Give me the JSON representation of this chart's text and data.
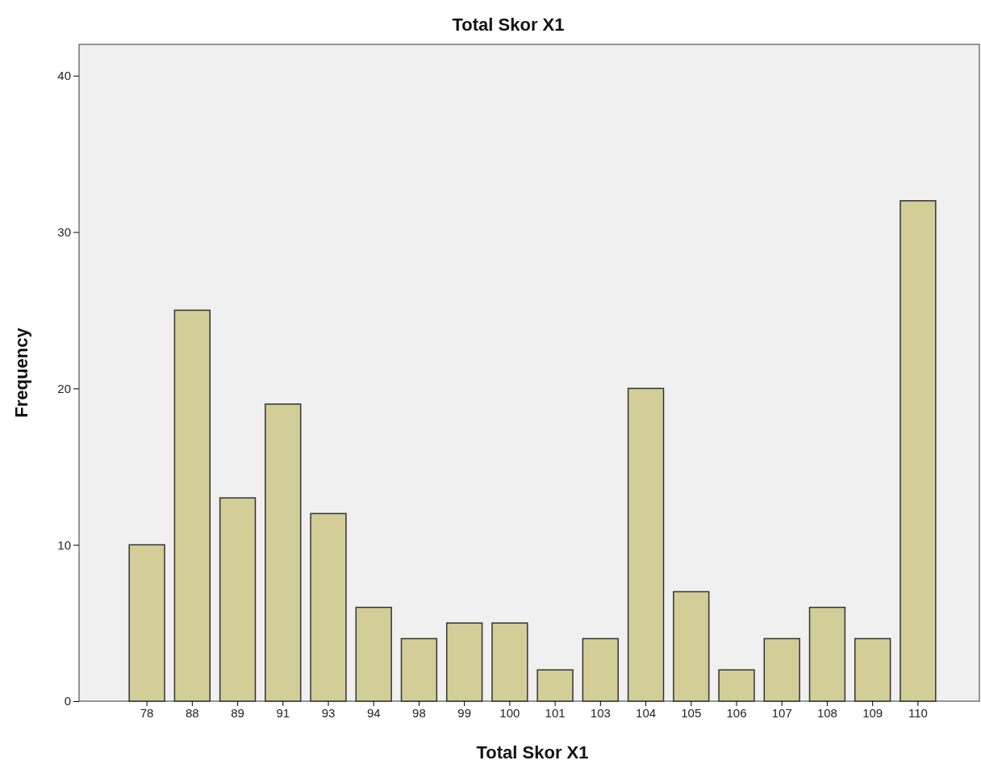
{
  "chart_data": {
    "type": "bar",
    "title": "Total Skor X1",
    "xlabel": "Total Skor X1",
    "ylabel": "Frequency",
    "categories": [
      "78",
      "88",
      "89",
      "91",
      "93",
      "94",
      "98",
      "99",
      "100",
      "101",
      "103",
      "104",
      "105",
      "106",
      "107",
      "108",
      "109",
      "110"
    ],
    "values": [
      10,
      25,
      13,
      19,
      12,
      6,
      4,
      5,
      5,
      2,
      4,
      20,
      7,
      2,
      4,
      6,
      4,
      32
    ],
    "color": "#d3ce97",
    "ylim": [
      0,
      42
    ],
    "yticks": [
      0,
      10,
      20,
      30,
      40
    ],
    "grid": false
  }
}
